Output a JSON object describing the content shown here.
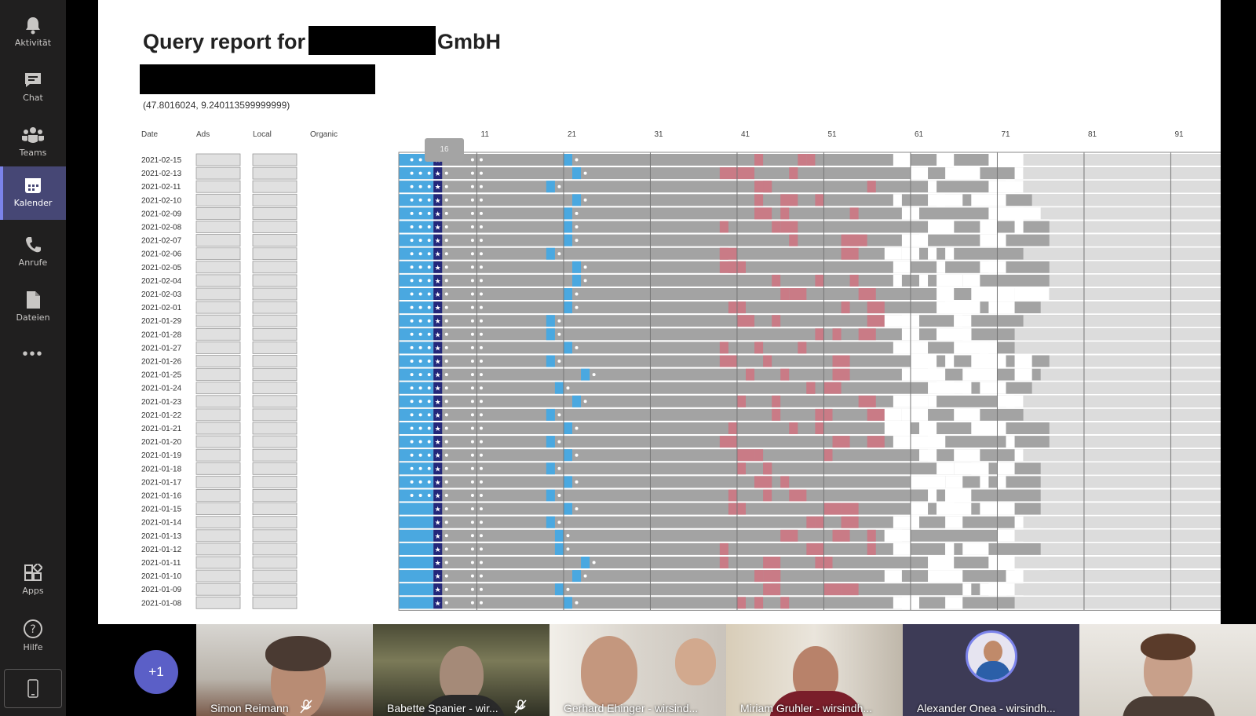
{
  "teams_rail": {
    "items": [
      {
        "label": "Aktivität",
        "icon": "bell-icon"
      },
      {
        "label": "Chat",
        "icon": "chat-icon"
      },
      {
        "label": "Teams",
        "icon": "teams-icon"
      },
      {
        "label": "Kalender",
        "icon": "calendar-icon",
        "active": true
      },
      {
        "label": "Anrufe",
        "icon": "phone-icon"
      },
      {
        "label": "Dateien",
        "icon": "files-icon"
      }
    ],
    "more": "•••",
    "bottom_items": [
      {
        "label": "Apps",
        "icon": "apps-icon"
      },
      {
        "label": "Hilfe",
        "icon": "help-icon"
      }
    ],
    "accent": "#464775"
  },
  "report": {
    "title_prefix": "Query report for",
    "title_suffix": "GmbH",
    "coordinates": "(47.8016024, 9.240113599999999)",
    "columns": {
      "date": "Date",
      "ads": "Ads",
      "local": "Local",
      "organic": "Organic"
    },
    "tick_labels": [
      "11",
      "21",
      "31",
      "41",
      "51",
      "61",
      "71",
      "81",
      "91"
    ],
    "tooltip": "16",
    "dates": [
      "2021-02-15",
      "2021-02-13",
      "2021-02-11",
      "2021-02-10",
      "2021-02-09",
      "2021-02-08",
      "2021-02-07",
      "2021-02-06",
      "2021-02-05",
      "2021-02-04",
      "2021-02-03",
      "2021-02-01",
      "2021-01-29",
      "2021-01-28",
      "2021-01-27",
      "2021-01-26",
      "2021-01-25",
      "2021-01-24",
      "2021-01-23",
      "2021-01-22",
      "2021-01-21",
      "2021-01-20",
      "2021-01-19",
      "2021-01-18",
      "2021-01-17",
      "2021-01-16",
      "2021-01-15",
      "2021-01-14",
      "2021-01-13",
      "2021-01-12",
      "2021-01-11",
      "2021-01-10",
      "2021-01-09",
      "2021-01-08"
    ],
    "colors": {
      "organic": "#4aa8e0",
      "own": "#23277a",
      "result": "#a3a3a3",
      "competitor": "#c97b86",
      "empty": "#ffffff",
      "late": "#dcdcdc",
      "box": "#e0e0e0"
    }
  },
  "participants": {
    "more_label": "+1",
    "tiles": [
      {
        "name": "Simon Reimann",
        "muted": true
      },
      {
        "name": "Babette Spanier - wir...",
        "muted": true
      },
      {
        "name": "Gerhard Ehinger - wirsind...",
        "muted": false
      },
      {
        "name": "Miriam Gruhler - wirsindh...",
        "muted": false
      },
      {
        "name": "Alexander Onea - wirsindh...",
        "muted": false
      },
      {
        "name": "",
        "muted": false
      }
    ]
  }
}
